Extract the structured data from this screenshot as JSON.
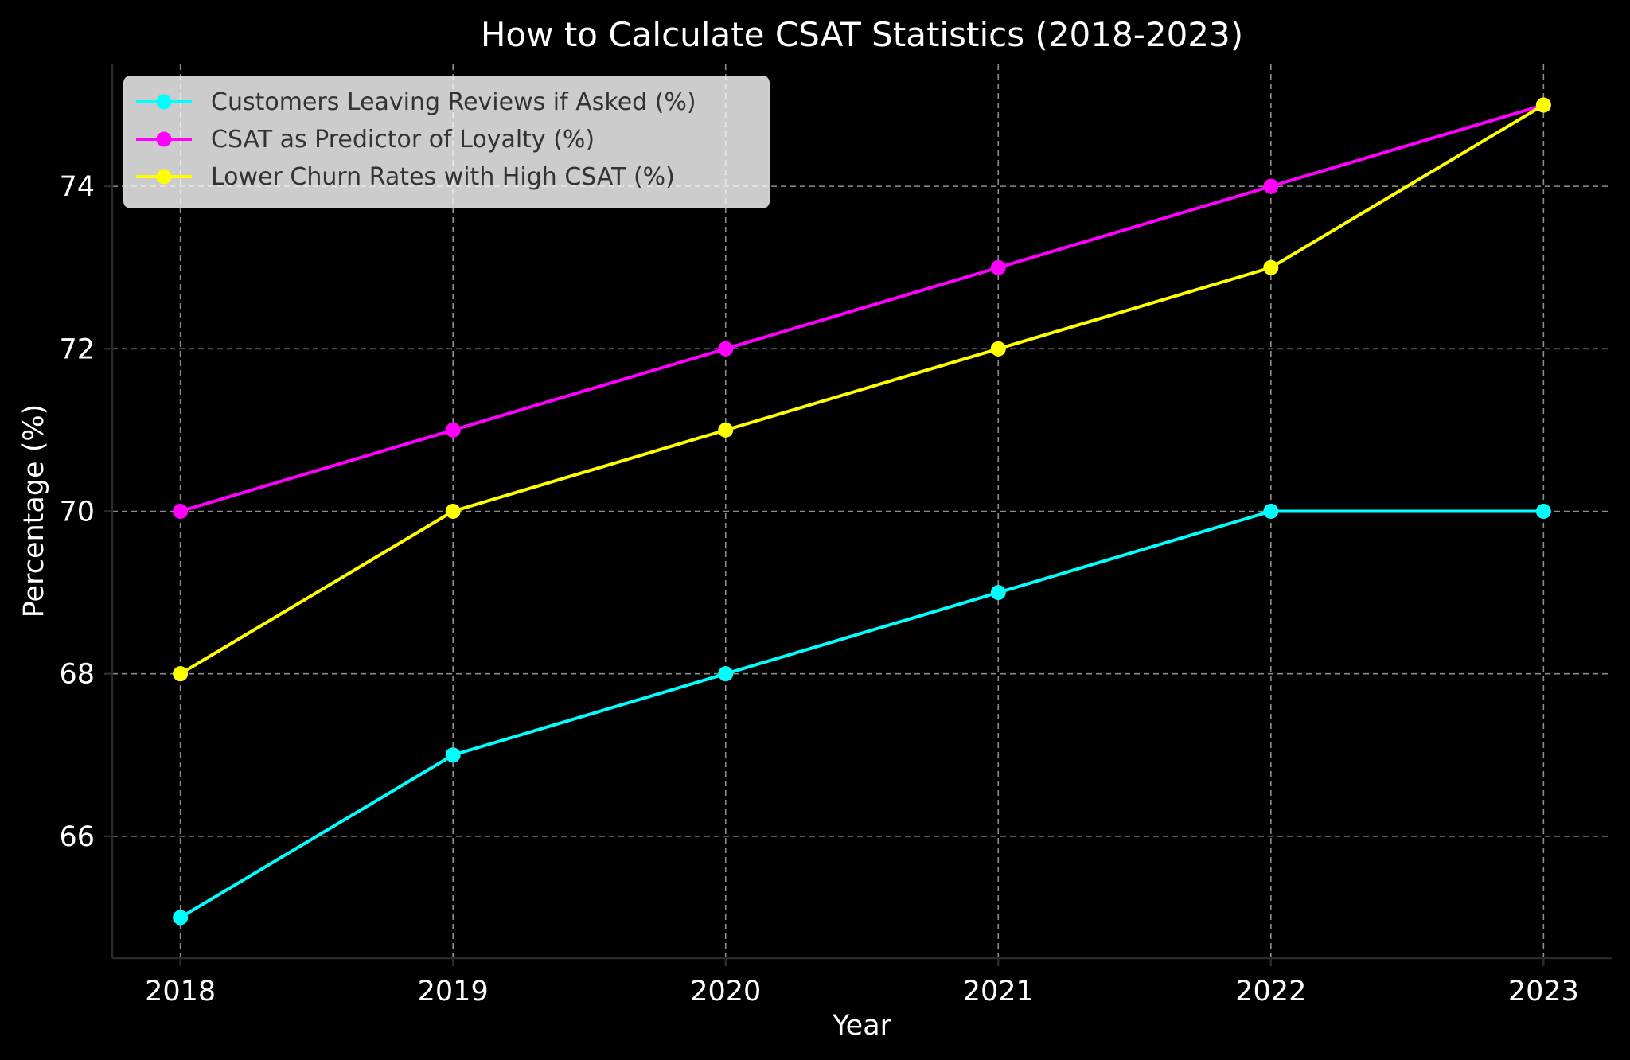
{
  "chart_data": {
    "type": "line",
    "title": "How to Calculate CSAT Statistics (2018-2023)",
    "xlabel": "Year",
    "ylabel": "Percentage (%)",
    "x": [
      "2018",
      "2019",
      "2020",
      "2021",
      "2022",
      "2023"
    ],
    "xlim": [
      2017.75,
      2023.25
    ],
    "ylim": [
      64.5,
      75.5
    ],
    "yticks": [
      66,
      68,
      70,
      72,
      74
    ],
    "grid": true,
    "legend_position": "top-left",
    "series": [
      {
        "name": "Customers Leaving Reviews if Asked (%)",
        "color": "#00ffff",
        "values": [
          65,
          67,
          68,
          69,
          70,
          70
        ]
      },
      {
        "name": "CSAT as Predictor of Loyalty (%)",
        "color": "#ff00ff",
        "values": [
          70,
          71,
          72,
          73,
          74,
          75
        ]
      },
      {
        "name": "Lower Churn Rates with High CSAT (%)",
        "color": "#ffff00",
        "values": [
          68,
          70,
          71,
          72,
          73,
          75
        ]
      }
    ]
  }
}
